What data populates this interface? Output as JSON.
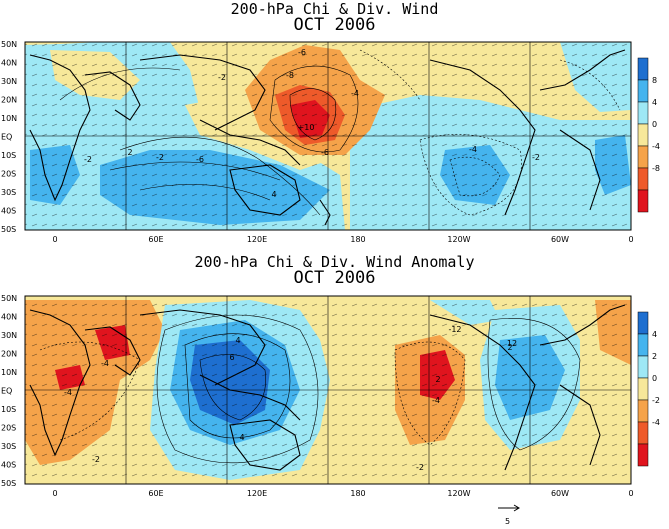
{
  "panels": [
    {
      "title_line1": "200-hPa Chi & Div. Wind",
      "title_line2": "OCT 2006",
      "colorbar_ticks": [
        "8",
        "4",
        "0",
        "-4",
        "-8"
      ],
      "colorbar_colors": [
        "#1e6fd0",
        "#45b4ee",
        "#9ee8f5",
        "#f7e89a",
        "#f5a34a",
        "#ee5a2a",
        "#e0141e"
      ],
      "contour_labels": [
        "-6",
        "-8",
        "-4",
        "+10",
        "-6",
        "-2",
        "-2",
        "-6",
        "-2",
        "-4",
        "4",
        "2",
        "-2"
      ]
    },
    {
      "title_line1": "200-hPa Chi & Div. Wind Anomaly",
      "title_line2": "OCT 2006",
      "colorbar_ticks": [
        "4",
        "2",
        "0",
        "-2",
        "-4"
      ],
      "colorbar_colors": [
        "#1e6fd0",
        "#45b4ee",
        "#9ee8f5",
        "#f7e89a",
        "#f5a34a",
        "#ee5a2a",
        "#e0141e"
      ],
      "contour_labels": [
        "-4",
        "-4",
        "-2",
        "6",
        "4",
        "4",
        "2",
        "2",
        "-12",
        "12",
        "-4",
        "-2"
      ]
    }
  ],
  "lat_labels": [
    "50N",
    "40N",
    "30N",
    "20N",
    "10N",
    "EQ",
    "10S",
    "20S",
    "30S",
    "40S",
    "50S"
  ],
  "lon_labels": [
    "0",
    "60E",
    "120E",
    "180",
    "120W",
    "60W",
    "0"
  ],
  "vector_ref": "5",
  "colors": {
    "cyan": "#9ee8f5",
    "blue": "#45b4ee",
    "darkblue": "#1e6fd0",
    "yellow": "#f7e89a",
    "orange": "#f5a34a",
    "red": "#e0141e"
  }
}
